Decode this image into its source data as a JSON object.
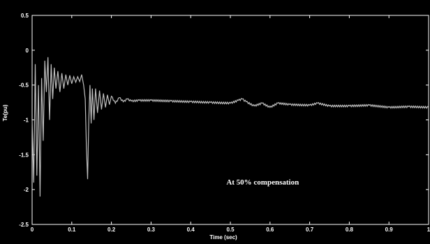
{
  "chart_data": {
    "type": "line",
    "title": "",
    "xlabel": "Time (sec)",
    "ylabel": "Te(pu)",
    "xlim": [
      0,
      1
    ],
    "ylim": [
      -2.5,
      0.5
    ],
    "grid": false,
    "x_ticks": [
      "0",
      "0.1",
      "0.2",
      "0.3",
      "0.4",
      "0.5",
      "0.6",
      "0.7",
      "0.8",
      "0.9",
      "1"
    ],
    "y_ticks": [
      "0.5",
      "0",
      "-0.5",
      "-1",
      "-1.5",
      "-2",
      "-2.5"
    ],
    "annotation": "At 50% compensation",
    "colors": {
      "background": "#000000",
      "axes": "#ffffff",
      "line": "#bfbfbf",
      "text": "#ffffff"
    },
    "series": [
      {
        "x": [
          0,
          0.004,
          0.008,
          0.012,
          0.016,
          0.02,
          0.024,
          0.028,
          0.032,
          0.036,
          0.04,
          0.044,
          0.048,
          0.052,
          0.056,
          0.06,
          0.065,
          0.07,
          0.075,
          0.08,
          0.085,
          0.09,
          0.095,
          0.1,
          0.105,
          0.11,
          0.115,
          0.12,
          0.125,
          0.13,
          0.134,
          0.137,
          0.14,
          0.143,
          0.146,
          0.149,
          0.152,
          0.156,
          0.16,
          0.165,
          0.17,
          0.175,
          0.18,
          0.185,
          0.19,
          0.195,
          0.2,
          0.21,
          0.22,
          0.23,
          0.24,
          0.25,
          0.27,
          0.3,
          0.35,
          0.4,
          0.45,
          0.5,
          0.52,
          0.53,
          0.54,
          0.56,
          0.58,
          0.6,
          0.62,
          0.65,
          0.7,
          0.72,
          0.75,
          0.8,
          0.85,
          0.9,
          0.95,
          1.0
        ],
        "y": [
          -1.0,
          -1.9,
          -0.2,
          -1.8,
          -0.5,
          -2.1,
          -0.4,
          -1.3,
          -0.15,
          -0.6,
          -0.1,
          -1.0,
          -0.2,
          -0.7,
          -0.25,
          -0.55,
          -0.3,
          -0.6,
          -0.33,
          -0.55,
          -0.35,
          -0.5,
          -0.36,
          -0.48,
          -0.38,
          -0.46,
          -0.38,
          -0.45,
          -0.35,
          -0.5,
          -0.7,
          -1.4,
          -1.85,
          -1.0,
          -0.5,
          -1.05,
          -0.55,
          -1.0,
          -0.55,
          -0.9,
          -0.58,
          -0.85,
          -0.62,
          -0.82,
          -0.64,
          -0.78,
          -0.66,
          -0.76,
          -0.68,
          -0.74,
          -0.7,
          -0.73,
          -0.72,
          -0.72,
          -0.73,
          -0.74,
          -0.75,
          -0.76,
          -0.72,
          -0.7,
          -0.74,
          -0.8,
          -0.76,
          -0.82,
          -0.76,
          -0.78,
          -0.79,
          -0.76,
          -0.8,
          -0.8,
          -0.79,
          -0.82,
          -0.81,
          -0.82
        ]
      }
    ]
  }
}
